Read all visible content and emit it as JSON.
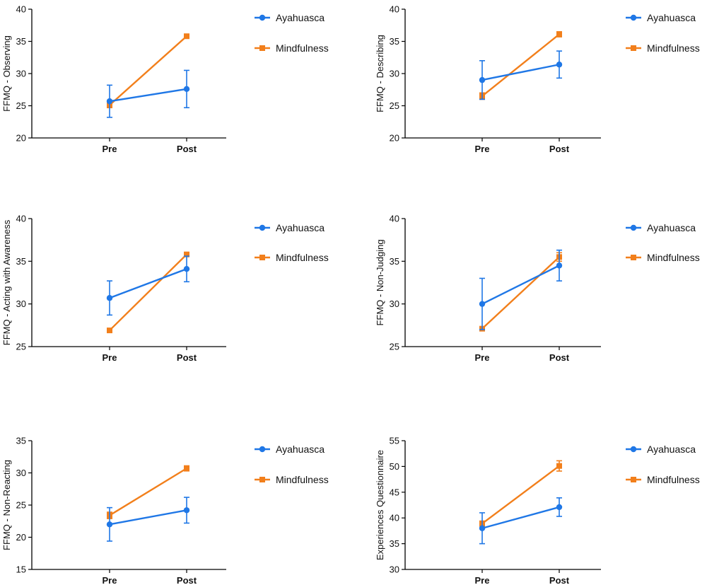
{
  "colors": {
    "ayahuasca": "#1f77e6",
    "mindfulness": "#f27f1b",
    "axis": "#000000"
  },
  "chart_data": [
    {
      "type": "line",
      "categories": [
        "Pre",
        "Post"
      ],
      "ylabel": "FFMQ - Observing",
      "ylim": [
        20,
        40
      ],
      "yticks": [
        "20",
        "25",
        "30",
        "35",
        "40"
      ],
      "legend_position": "right",
      "series": [
        {
          "name": "Ayahuasca",
          "values": [
            25.7,
            27.6
          ],
          "errors": [
            2.5,
            2.9
          ]
        },
        {
          "name": "Mindfulness",
          "values": [
            25.1,
            35.8
          ],
          "errors": [
            0.4,
            0.3
          ]
        }
      ]
    },
    {
      "type": "line",
      "categories": [
        "Pre",
        "Post"
      ],
      "ylabel": "FFMQ - Describing",
      "ylim": [
        20,
        40
      ],
      "yticks": [
        "20",
        "25",
        "30",
        "35",
        "40"
      ],
      "legend_position": "right",
      "series": [
        {
          "name": "Ayahuasca",
          "values": [
            29.0,
            31.4
          ],
          "errors": [
            3.0,
            2.1
          ]
        },
        {
          "name": "Mindfulness",
          "values": [
            26.5,
            36.1
          ],
          "errors": [
            0.5,
            0.4
          ]
        }
      ]
    },
    {
      "type": "line",
      "categories": [
        "Pre",
        "Post"
      ],
      "ylabel": "FFMQ - Acting with Awareness",
      "ylim": [
        25,
        40
      ],
      "yticks": [
        "25",
        "30",
        "35",
        "40"
      ],
      "legend_position": "right",
      "series": [
        {
          "name": "Ayahuasca",
          "values": [
            30.7,
            34.1
          ],
          "errors": [
            2.0,
            1.5
          ]
        },
        {
          "name": "Mindfulness",
          "values": [
            26.9,
            35.8
          ],
          "errors": [
            0.2,
            0.2
          ]
        }
      ]
    },
    {
      "type": "line",
      "categories": [
        "Pre",
        "Post"
      ],
      "ylabel": "FFMQ - Non-Judging",
      "ylim": [
        25,
        40
      ],
      "yticks": [
        "25",
        "30",
        "35",
        "40"
      ],
      "legend_position": "right",
      "series": [
        {
          "name": "Ayahuasca",
          "values": [
            30.0,
            34.5
          ],
          "errors": [
            3.0,
            1.8
          ]
        },
        {
          "name": "Mindfulness",
          "values": [
            27.1,
            35.5
          ],
          "errors": [
            0.2,
            0.5
          ]
        }
      ]
    },
    {
      "type": "line",
      "categories": [
        "Pre",
        "Post"
      ],
      "ylabel": "FFMQ - Non-Reacting",
      "ylim": [
        15,
        35
      ],
      "yticks": [
        "15",
        "20",
        "25",
        "30",
        "35"
      ],
      "legend_position": "right",
      "series": [
        {
          "name": "Ayahuasca",
          "values": [
            22.0,
            24.2
          ],
          "errors": [
            2.6,
            2.0
          ]
        },
        {
          "name": "Mindfulness",
          "values": [
            23.4,
            30.7
          ],
          "errors": [
            0.5,
            0.4
          ]
        }
      ]
    },
    {
      "type": "line",
      "categories": [
        "Pre",
        "Post"
      ],
      "ylabel": "Experiences Questionnaire",
      "ylim": [
        30,
        55
      ],
      "yticks": [
        "30",
        "35",
        "40",
        "45",
        "50",
        "55"
      ],
      "legend_position": "right",
      "series": [
        {
          "name": "Ayahuasca",
          "values": [
            38.0,
            42.1
          ],
          "errors": [
            3.0,
            1.8
          ]
        },
        {
          "name": "Mindfulness",
          "values": [
            38.9,
            50.1
          ],
          "errors": [
            0.5,
            1.0
          ]
        }
      ]
    }
  ]
}
